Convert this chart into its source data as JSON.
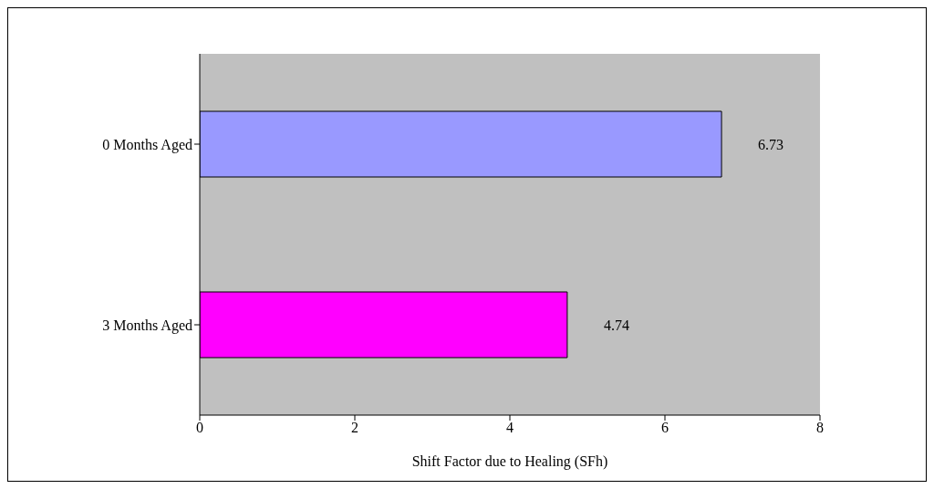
{
  "chart_data": {
    "type": "bar",
    "orientation": "horizontal",
    "categories": [
      "0 Months Aged",
      "3 Months Aged"
    ],
    "values": [
      6.73,
      4.74
    ],
    "colors": [
      "#9999ff",
      "#ff00ff"
    ],
    "xlabel": "Shift Factor due to Healing (SFh)",
    "xlim": [
      0,
      8
    ],
    "xticks": [
      0,
      2,
      4,
      6,
      8
    ],
    "data_labels": true,
    "grid": false
  }
}
